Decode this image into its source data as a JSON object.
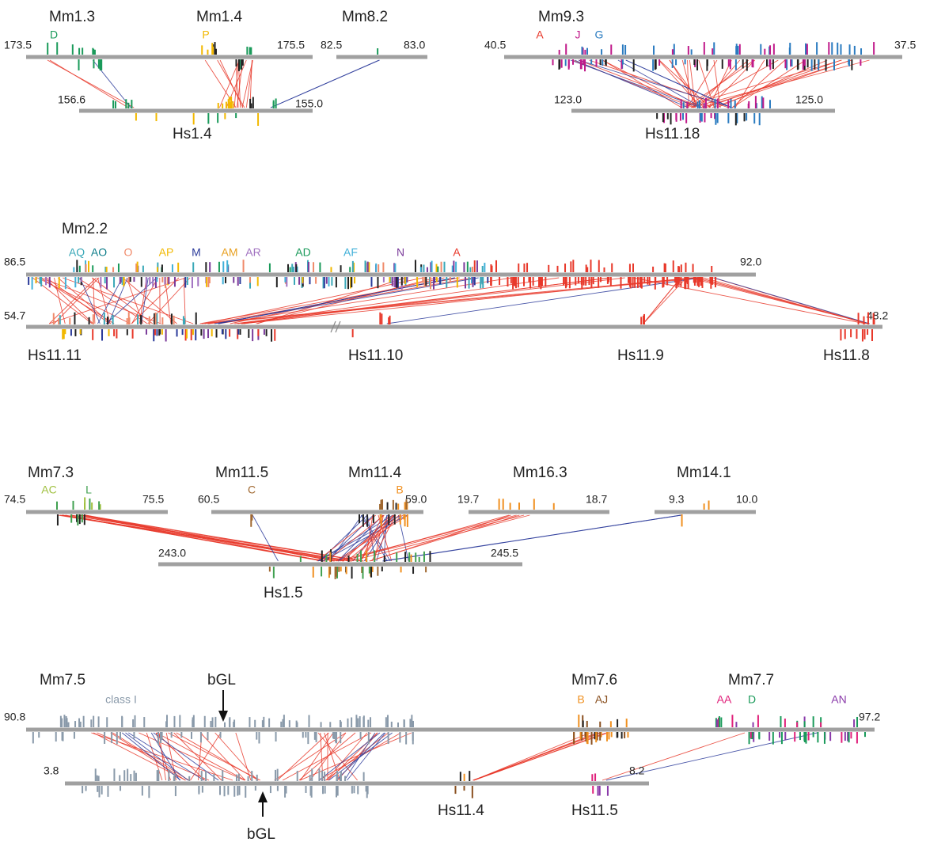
{
  "panels": [
    {
      "mouse_lines": [
        {
          "start": "173.5",
          "end": "175.5",
          "regions": [
            "Mm1.3",
            "Mm1.4"
          ],
          "clusters": [
            {
              "label": "D",
              "color": "#1a9a5a"
            },
            {
              "label": "P",
              "color": "#f2b800"
            }
          ]
        },
        {
          "start": "82.5",
          "end": "83.0",
          "regions": [
            "Mm8.2"
          ]
        },
        {
          "start": "40.5",
          "end": "37.5",
          "regions": [
            "Mm9.3"
          ],
          "clusters": [
            {
              "label": "A",
              "color": "#e8382a"
            },
            {
              "label": "J",
              "color": "#c0198a"
            },
            {
              "label": "G",
              "color": "#2a7bc0"
            }
          ]
        }
      ],
      "human_lines": [
        {
          "start": "156.6",
          "end": "155.0",
          "regions": [
            "Hs1.4"
          ]
        },
        {
          "start": "123.0",
          "end": "125.0",
          "regions": [
            "Hs11.18"
          ]
        }
      ]
    },
    {
      "mouse_lines": [
        {
          "start": "86.5",
          "end": "92.0",
          "regions": [
            "Mm2.2"
          ],
          "clusters": [
            {
              "label": "AQ",
              "color": "#3aa8b8"
            },
            {
              "label": "AO",
              "color": "#0d7d8a"
            },
            {
              "label": "O",
              "color": "#f08a6a"
            },
            {
              "label": "AP",
              "color": "#f2b800"
            },
            {
              "label": "M",
              "color": "#2a3a9a"
            },
            {
              "label": "AM",
              "color": "#e8a020"
            },
            {
              "label": "AR",
              "color": "#a070c0"
            },
            {
              "label": "AD",
              "color": "#1a9a5a"
            },
            {
              "label": "AF",
              "color": "#40b0d8"
            },
            {
              "label": "N",
              "color": "#7a3a9a"
            },
            {
              "label": "A",
              "color": "#e8382a"
            }
          ]
        }
      ],
      "human_lines": [
        {
          "start": "54.7",
          "end": "48.2",
          "regions": [
            "Hs11.11",
            "Hs11.10",
            "Hs11.9",
            "Hs11.8"
          ]
        }
      ]
    },
    {
      "mouse_lines": [
        {
          "start": "74.5",
          "end": "75.5",
          "regions": [
            "Mm7.3"
          ],
          "clusters": [
            {
              "label": "AC",
              "color": "#a0c040"
            },
            {
              "label": "L",
              "color": "#40a050"
            }
          ]
        },
        {
          "start": "60.5",
          "end": "59.0",
          "regions": [
            "Mm11.5",
            "Mm11.4"
          ],
          "clusters": [
            {
              "label": "C",
              "color": "#a06830"
            },
            {
              "label": "B",
              "color": "#f09020"
            }
          ]
        },
        {
          "start": "19.7",
          "end": "18.7",
          "regions": [
            "Mm16.3"
          ]
        },
        {
          "start": "9.3",
          "end": "10.0",
          "regions": [
            "Mm14.1"
          ]
        }
      ],
      "human_lines": [
        {
          "start": "243.0",
          "end": "245.5",
          "regions": [
            "Hs1.5"
          ]
        }
      ]
    },
    {
      "mouse_lines": [
        {
          "start": "90.8",
          "end": "97.2",
          "regions": [
            "Mm7.5",
            "Mm7.6",
            "Mm7.7"
          ],
          "annotation": "bGL",
          "clusters": [
            {
              "label": "class I",
              "color": "#8a9aaa"
            },
            {
              "label": "B",
              "color": "#f09020"
            },
            {
              "label": "AJ",
              "color": "#8a5020"
            },
            {
              "label": "AA",
              "color": "#e0207a"
            },
            {
              "label": "D",
              "color": "#1a9a5a"
            },
            {
              "label": "AN",
              "color": "#8a3aaa"
            }
          ]
        }
      ],
      "human_lines": [
        {
          "start": "3.8",
          "end": "8.2",
          "regions": [
            "Hs11.4",
            "Hs11.5"
          ],
          "annotation": "bGL"
        }
      ]
    }
  ]
}
